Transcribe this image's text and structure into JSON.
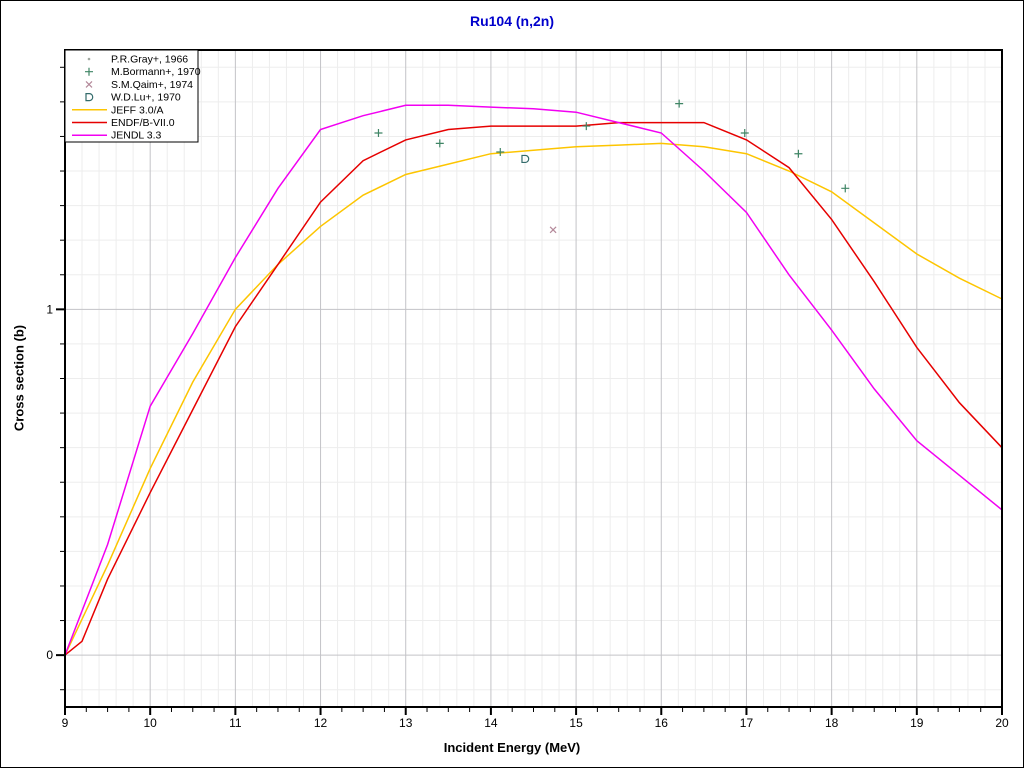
{
  "title": "Ru104 (n,2n)",
  "colors": {
    "title": "#0000cc",
    "axis": "#000000",
    "grid_minor": "#ededed",
    "grid_major": "#c3c3c7",
    "background": "#ffffff",
    "tick_label": "#000000"
  },
  "chart_data": {
    "type": "line",
    "title": "Ru104 (n,2n)",
    "xlabel": "Incident Energy (MeV)",
    "ylabel": "Cross section (b)",
    "xlim": [
      9,
      20
    ],
    "ylim": [
      -0.15,
      1.75
    ],
    "x_major_ticks": [
      9,
      10,
      11,
      12,
      13,
      14,
      15,
      16,
      17,
      18,
      19,
      20
    ],
    "x_tick_labels": [
      "9",
      "10",
      "11",
      "12",
      "13",
      "14",
      "15",
      "16",
      "17",
      "18",
      "19",
      "20"
    ],
    "x_minor_tick_step": 0.25,
    "y_major_ticks": [
      0,
      1
    ],
    "y_tick_labels": [
      "0",
      "1"
    ],
    "y_minor_tick_step": 0.1,
    "grid": {
      "vertical_minor_step": 0.2,
      "horizontal_minor_step": 0.1,
      "vertical_major_step": 1.0,
      "horizontal_major_lines": [
        0,
        1
      ],
      "legend_position": "top-left"
    },
    "series": [
      {
        "name": "JEFF 3.0/A",
        "color": "#fdc500",
        "points": [
          [
            9,
            0
          ],
          [
            9.5,
            0.26
          ],
          [
            10,
            0.54
          ],
          [
            10.5,
            0.79
          ],
          [
            11,
            1.0
          ],
          [
            11.5,
            1.13
          ],
          [
            12,
            1.24
          ],
          [
            12.5,
            1.33
          ],
          [
            13,
            1.39
          ],
          [
            13.5,
            1.42
          ],
          [
            14,
            1.45
          ],
          [
            14.5,
            1.46
          ],
          [
            15,
            1.47
          ],
          [
            15.5,
            1.475
          ],
          [
            16,
            1.48
          ],
          [
            16.5,
            1.47
          ],
          [
            17,
            1.45
          ],
          [
            17.5,
            1.4
          ],
          [
            18,
            1.34
          ],
          [
            18.5,
            1.25
          ],
          [
            19,
            1.16
          ],
          [
            19.5,
            1.09
          ],
          [
            20,
            1.03
          ]
        ]
      },
      {
        "name": "ENDF/B-VII.0",
        "color": "#e60000",
        "points": [
          [
            9,
            0
          ],
          [
            9.2,
            0.04
          ],
          [
            9.5,
            0.22
          ],
          [
            10,
            0.47
          ],
          [
            10.5,
            0.71
          ],
          [
            11,
            0.95
          ],
          [
            11.5,
            1.13
          ],
          [
            12,
            1.31
          ],
          [
            12.5,
            1.43
          ],
          [
            13,
            1.49
          ],
          [
            13.5,
            1.52
          ],
          [
            14,
            1.53
          ],
          [
            14.5,
            1.53
          ],
          [
            15,
            1.53
          ],
          [
            15.5,
            1.54
          ],
          [
            16,
            1.54
          ],
          [
            16.5,
            1.54
          ],
          [
            17,
            1.49
          ],
          [
            17.5,
            1.41
          ],
          [
            18,
            1.26
          ],
          [
            18.5,
            1.08
          ],
          [
            19,
            0.89
          ],
          [
            19.5,
            0.73
          ],
          [
            20,
            0.6
          ]
        ]
      },
      {
        "name": "JENDL 3.3",
        "color": "#f200f2",
        "points": [
          [
            9,
            0
          ],
          [
            9.5,
            0.32
          ],
          [
            10,
            0.72
          ],
          [
            10.5,
            0.93
          ],
          [
            11,
            1.15
          ],
          [
            11.5,
            1.35
          ],
          [
            12,
            1.52
          ],
          [
            12.5,
            1.56
          ],
          [
            13,
            1.59
          ],
          [
            13.5,
            1.59
          ],
          [
            14,
            1.585
          ],
          [
            14.5,
            1.58
          ],
          [
            15,
            1.57
          ],
          [
            15.5,
            1.54
          ],
          [
            16,
            1.51
          ],
          [
            16.5,
            1.4
          ],
          [
            17,
            1.28
          ],
          [
            17.5,
            1.1
          ],
          [
            18,
            0.94
          ],
          [
            18.5,
            0.77
          ],
          [
            19,
            0.62
          ],
          [
            19.5,
            0.52
          ],
          [
            20,
            0.42
          ]
        ]
      }
    ],
    "scatter": [
      {
        "name": "P.R.Gray+, 1966",
        "marker": "dot",
        "color": "#a0a8a0",
        "points": []
      },
      {
        "name": "M.Bormann+, 1970",
        "marker": "plus",
        "color": "#3f8565",
        "points": [
          [
            12.68,
            1.51
          ],
          [
            13.4,
            1.48
          ],
          [
            14.11,
            1.455
          ],
          [
            15.12,
            1.53
          ],
          [
            16.21,
            1.595
          ],
          [
            16.98,
            1.51
          ],
          [
            17.61,
            1.45
          ],
          [
            18.16,
            1.35
          ]
        ]
      },
      {
        "name": "S.M.Qaim+, 1974",
        "marker": "cross",
        "color": "#b4899a",
        "points": [
          [
            14.73,
            1.23
          ]
        ]
      },
      {
        "name": "W.D.Lu+, 1970",
        "marker": "dee",
        "color": "#336b6b",
        "points": [
          [
            14.4,
            1.435
          ]
        ]
      }
    ]
  }
}
